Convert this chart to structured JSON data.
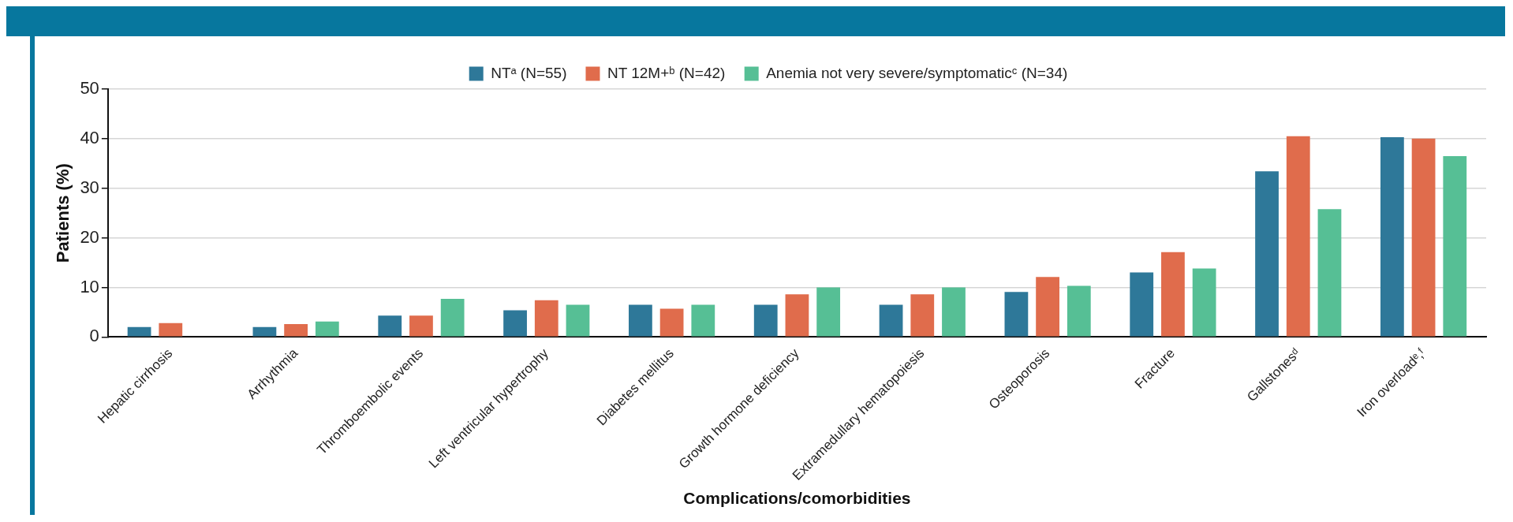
{
  "chart_data": {
    "type": "bar",
    "xlabel": "Complications/comorbidities",
    "ylabel": "Patients (%)",
    "categories": [
      "Hepatic cirrhosis",
      "Arrhythmia",
      "Thromboembolic events",
      "Left ventricular hypertrophy",
      "Diabetes mellitus",
      "Growth hormone deficiency",
      "Extramedullary hematopoiesis",
      "Osteoporosis",
      "Fracture",
      "Gallstonesᵈ",
      "Iron overloadᵉ,ᶠ"
    ],
    "series": [
      {
        "name": "NTᵃ (N=55)",
        "color": "#2e7899",
        "values": [
          2,
          2,
          4.3,
          5.4,
          6.5,
          6.5,
          6.5,
          9.1,
          13,
          33.4,
          40.3
        ]
      },
      {
        "name": "NT 12M+ᵇ (N=42)",
        "color": "#e06c4c",
        "values": [
          2.8,
          2.6,
          4.3,
          7.4,
          5.7,
          8.6,
          8.6,
          12.1,
          17.1,
          40.5,
          40
        ]
      },
      {
        "name": "Anemia not very severe/symptomaticᶜ (N=34)",
        "color": "#56bf95",
        "values": [
          0,
          3.1,
          7.7,
          6.5,
          6.5,
          10,
          10,
          10.3,
          13.8,
          25.8,
          36.5
        ]
      }
    ],
    "ylim": [
      0,
      50
    ],
    "yticks": [
      0,
      10,
      20,
      30,
      40,
      50
    ],
    "grid": "y",
    "legend": "top"
  }
}
